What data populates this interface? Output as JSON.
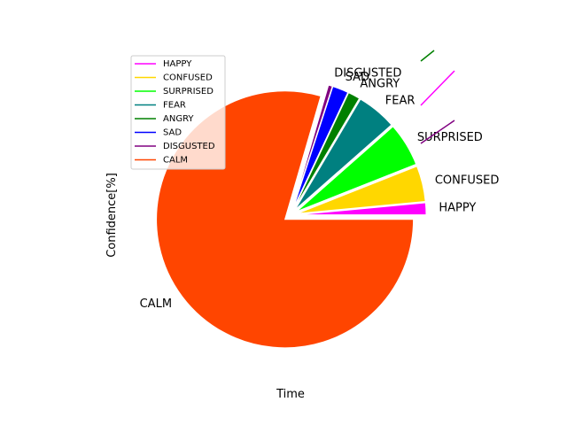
{
  "chart_data": {
    "type": "pie",
    "xlabel": "Time",
    "ylabel": "Confidence[%]",
    "legend_position": "upper-left",
    "slices": [
      {
        "label": "HAPPY",
        "value": 1.5,
        "color": "#ff00ff"
      },
      {
        "label": "CONFUSED",
        "value": 4.5,
        "color": "#ffd700"
      },
      {
        "label": "SURPRISED",
        "value": 5.5,
        "color": "#00ff00"
      },
      {
        "label": "FEAR",
        "value": 5.0,
        "color": "#008080"
      },
      {
        "label": "ANGRY",
        "value": 1.5,
        "color": "#008000"
      },
      {
        "label": "SAD",
        "value": 2.0,
        "color": "#0000ff"
      },
      {
        "label": "DISGUSTED",
        "value": 0.5,
        "color": "#800080"
      },
      {
        "label": "CALM",
        "value": 79.5,
        "color": "#ff4500"
      }
    ],
    "stray_lines": [
      {
        "color": "#008000"
      },
      {
        "color": "#ff00ff"
      },
      {
        "color": "#800080"
      }
    ]
  }
}
